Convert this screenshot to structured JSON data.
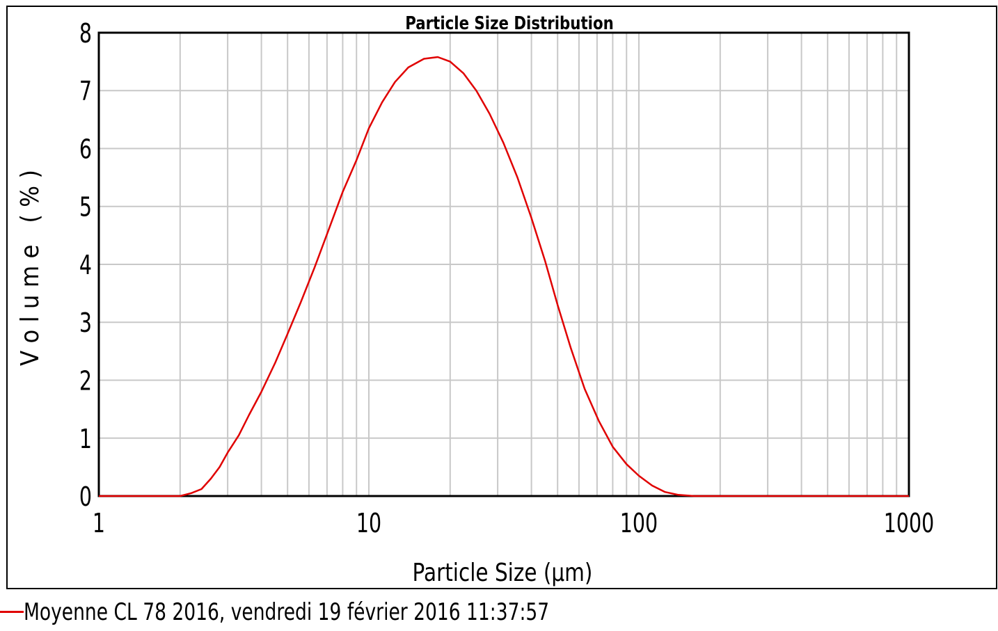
{
  "chart_data": {
    "type": "line",
    "title": "Particle Size Distribution",
    "xlabel": "Particle Size (µm)",
    "ylabel": "V o l u m e   ( % )",
    "x_scale": "log",
    "xlim": [
      1,
      1000
    ],
    "ylim": [
      0,
      8
    ],
    "x_ticks": [
      "1",
      "10",
      "100",
      "1000"
    ],
    "y_ticks": [
      "0",
      "1",
      "2",
      "3",
      "4",
      "5",
      "6",
      "7",
      "8"
    ],
    "grid": true,
    "legend_position": "bottom-left",
    "series": [
      {
        "name": "Moyenne CL 78 2016, vendredi 19 février 2016 11:37:57",
        "color": "#e00000",
        "x": [
          1,
          1.5,
          2.0,
          2.2,
          2.4,
          2.6,
          2.8,
          3.0,
          3.3,
          3.6,
          4.0,
          4.5,
          5.0,
          5.6,
          6.3,
          7.1,
          8.0,
          9.0,
          10,
          11.2,
          12.5,
          14,
          16,
          18,
          20,
          22.4,
          25,
          28,
          31.5,
          35.5,
          40,
          45,
          50,
          56,
          63,
          71,
          80,
          90,
          100,
          112,
          125,
          140,
          160,
          200,
          500,
          1000
        ],
        "y": [
          0,
          0,
          0,
          0.05,
          0.12,
          0.3,
          0.5,
          0.75,
          1.05,
          1.4,
          1.8,
          2.3,
          2.8,
          3.35,
          3.95,
          4.6,
          5.25,
          5.8,
          6.35,
          6.8,
          7.15,
          7.4,
          7.55,
          7.58,
          7.5,
          7.3,
          7.0,
          6.6,
          6.1,
          5.5,
          4.8,
          4.05,
          3.3,
          2.55,
          1.85,
          1.3,
          0.85,
          0.55,
          0.35,
          0.18,
          0.07,
          0.02,
          0,
          0,
          0,
          0
        ]
      }
    ]
  }
}
